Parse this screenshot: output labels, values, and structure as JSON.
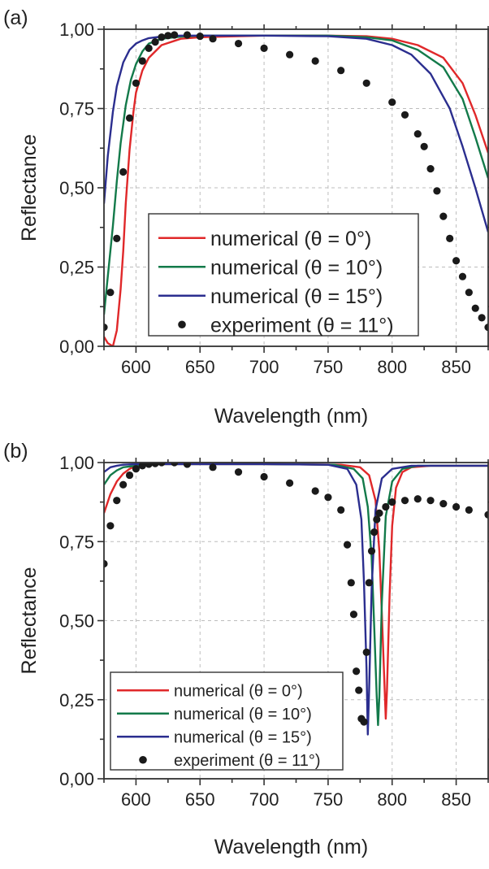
{
  "panels": [
    {
      "tag": "(a)",
      "xlabel": "Wavelength (nm)",
      "ylabel": "Reflectance",
      "legend_size": "large"
    },
    {
      "tag": "(b)",
      "xlabel": "Wavelength (nm)",
      "ylabel": "Reflectance",
      "legend_size": "small"
    }
  ],
  "chart_data": [
    {
      "type": "line",
      "title": "",
      "xlabel": "Wavelength (nm)",
      "ylabel": "Reflectance",
      "xlim": [
        575,
        875
      ],
      "ylim": [
        0,
        1.0
      ],
      "xticks": [
        "600",
        "650",
        "700",
        "750",
        "800",
        "850"
      ],
      "yticks": [
        "0,00",
        "0,25",
        "0,50",
        "0,75",
        "1,00"
      ],
      "grid": true,
      "legend_position": "lower-center",
      "legend": [
        {
          "label": "numerical (θ = 0°)",
          "color": "#e0282a",
          "kind": "line"
        },
        {
          "label": "numerical (θ = 10°)",
          "color": "#137a4a",
          "kind": "line"
        },
        {
          "label": "numerical (θ = 15°)",
          "color": "#2b2e8f",
          "kind": "line"
        },
        {
          "label": "experiment (θ = 11°)",
          "color": "#1a1a1a",
          "kind": "dots"
        }
      ],
      "series": [
        {
          "name": "numerical (θ = 0°)",
          "color": "#e0282a",
          "x": [
            575,
            578,
            582,
            585,
            588,
            590,
            592,
            595,
            598,
            600,
            605,
            610,
            620,
            635,
            650,
            700,
            750,
            780,
            800,
            820,
            840,
            855,
            865,
            875
          ],
          "y": [
            0.03,
            0.01,
            0.0,
            0.05,
            0.18,
            0.3,
            0.45,
            0.62,
            0.74,
            0.8,
            0.87,
            0.91,
            0.95,
            0.97,
            0.975,
            0.98,
            0.98,
            0.978,
            0.97,
            0.95,
            0.91,
            0.83,
            0.73,
            0.61
          ]
        },
        {
          "name": "numerical (θ = 10°)",
          "color": "#137a4a",
          "x": [
            575,
            578,
            582,
            585,
            588,
            592,
            596,
            600,
            605,
            610,
            620,
            635,
            650,
            700,
            750,
            780,
            800,
            820,
            840,
            855,
            865,
            875
          ],
          "y": [
            0.1,
            0.22,
            0.38,
            0.52,
            0.64,
            0.76,
            0.84,
            0.89,
            0.93,
            0.955,
            0.97,
            0.977,
            0.98,
            0.98,
            0.98,
            0.975,
            0.965,
            0.935,
            0.88,
            0.78,
            0.66,
            0.53
          ]
        },
        {
          "name": "numerical (θ = 15°)",
          "color": "#2b2e8f",
          "x": [
            575,
            578,
            582,
            585,
            590,
            595,
            600,
            605,
            610,
            620,
            635,
            650,
            700,
            750,
            780,
            800,
            815,
            830,
            845,
            855,
            865,
            875
          ],
          "y": [
            0.45,
            0.6,
            0.74,
            0.82,
            0.895,
            0.935,
            0.955,
            0.965,
            0.972,
            0.977,
            0.98,
            0.98,
            0.98,
            0.978,
            0.97,
            0.95,
            0.92,
            0.86,
            0.75,
            0.63,
            0.5,
            0.36
          ]
        },
        {
          "name": "experiment (θ = 11°)",
          "color": "#1a1a1a",
          "x": [
            575,
            580,
            585,
            590,
            595,
            600,
            605,
            610,
            615,
            620,
            625,
            630,
            640,
            650,
            660,
            680,
            700,
            720,
            740,
            760,
            780,
            800,
            810,
            820,
            825,
            830,
            835,
            840,
            845,
            850,
            855,
            860,
            865,
            870,
            875
          ],
          "y": [
            0.06,
            0.17,
            0.34,
            0.55,
            0.72,
            0.83,
            0.9,
            0.94,
            0.96,
            0.975,
            0.98,
            0.982,
            0.982,
            0.978,
            0.97,
            0.955,
            0.94,
            0.92,
            0.9,
            0.87,
            0.83,
            0.77,
            0.73,
            0.67,
            0.63,
            0.56,
            0.49,
            0.41,
            0.34,
            0.27,
            0.22,
            0.17,
            0.12,
            0.09,
            0.06
          ]
        }
      ]
    },
    {
      "type": "line",
      "title": "",
      "xlabel": "Wavelength (nm)",
      "ylabel": "Reflectance",
      "xlim": [
        575,
        875
      ],
      "ylim": [
        0,
        1.0
      ],
      "xticks": [
        "600",
        "650",
        "700",
        "750",
        "800",
        "850"
      ],
      "yticks": [
        "0,00",
        "0,25",
        "0,50",
        "0,75",
        "1,00"
      ],
      "grid": true,
      "legend_position": "lower-left",
      "legend": [
        {
          "label": "numerical (θ = 0°)",
          "color": "#e0282a",
          "kind": "line"
        },
        {
          "label": "numerical (θ = 10°)",
          "color": "#137a4a",
          "kind": "line"
        },
        {
          "label": "numerical (θ = 15°)",
          "color": "#2b2e8f",
          "kind": "line"
        },
        {
          "label": "experiment (θ = 11°)",
          "color": "#1a1a1a",
          "kind": "dots"
        }
      ],
      "series": [
        {
          "name": "numerical (θ = 0°)",
          "color": "#e0282a",
          "x": [
            575,
            580,
            585,
            590,
            595,
            600,
            610,
            620,
            700,
            760,
            775,
            782,
            787,
            790,
            792,
            794,
            795,
            796,
            798,
            800,
            803,
            808,
            815,
            830,
            875
          ],
          "y": [
            0.84,
            0.9,
            0.94,
            0.965,
            0.98,
            0.99,
            0.995,
            0.995,
            0.995,
            0.993,
            0.985,
            0.96,
            0.88,
            0.72,
            0.52,
            0.3,
            0.19,
            0.28,
            0.58,
            0.8,
            0.92,
            0.97,
            0.985,
            0.99,
            0.99
          ]
        },
        {
          "name": "numerical (θ = 10°)",
          "color": "#137a4a",
          "x": [
            575,
            580,
            585,
            590,
            600,
            610,
            700,
            755,
            770,
            777,
            781,
            784,
            786,
            788,
            789,
            790,
            792,
            795,
            800,
            808,
            820,
            875
          ],
          "y": [
            0.93,
            0.96,
            0.975,
            0.985,
            0.99,
            0.995,
            0.995,
            0.993,
            0.98,
            0.95,
            0.86,
            0.7,
            0.48,
            0.26,
            0.17,
            0.26,
            0.56,
            0.83,
            0.94,
            0.98,
            0.99,
            0.99
          ]
        },
        {
          "name": "numerical (θ = 15°)",
          "color": "#2b2e8f",
          "x": [
            575,
            580,
            585,
            590,
            600,
            700,
            750,
            765,
            772,
            776,
            778,
            780,
            781,
            782,
            784,
            787,
            792,
            800,
            815,
            875
          ],
          "y": [
            0.97,
            0.985,
            0.99,
            0.993,
            0.995,
            0.995,
            0.993,
            0.98,
            0.93,
            0.82,
            0.62,
            0.35,
            0.14,
            0.28,
            0.6,
            0.85,
            0.95,
            0.98,
            0.99,
            0.99
          ]
        },
        {
          "name": "experiment (θ = 11°)",
          "color": "#1a1a1a",
          "x": [
            575,
            580,
            585,
            590,
            595,
            600,
            605,
            610,
            615,
            620,
            630,
            640,
            660,
            680,
            700,
            720,
            740,
            750,
            760,
            765,
            768,
            770,
            772,
            774,
            776,
            778,
            780,
            782,
            784,
            786,
            788,
            790,
            795,
            800,
            810,
            820,
            830,
            840,
            850,
            860,
            875
          ],
          "y": [
            0.68,
            0.8,
            0.88,
            0.93,
            0.96,
            0.98,
            0.99,
            0.995,
            0.997,
            1.0,
            1.0,
            0.995,
            0.985,
            0.97,
            0.955,
            0.935,
            0.91,
            0.89,
            0.85,
            0.74,
            0.62,
            0.52,
            0.34,
            0.28,
            0.19,
            0.18,
            0.4,
            0.62,
            0.72,
            0.78,
            0.82,
            0.84,
            0.86,
            0.875,
            0.88,
            0.885,
            0.88,
            0.87,
            0.86,
            0.85,
            0.835
          ]
        }
      ]
    }
  ]
}
